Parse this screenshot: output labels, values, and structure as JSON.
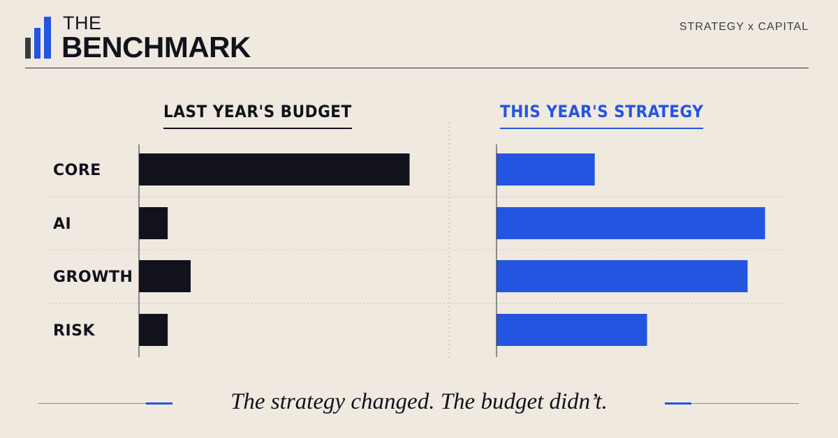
{
  "brand": {
    "line1": "THE",
    "line2": "BENCHMARK",
    "tagline": "STRATEGY x CAPITAL",
    "icon": "bar-chart-logo-icon"
  },
  "colors": {
    "background": "#efe9e0",
    "ink": "#11121c",
    "accent": "#2355e0",
    "logo_gray": "#3a3b40"
  },
  "chart_data": {
    "type": "bar",
    "orientation": "horizontal",
    "categories": [
      "CORE",
      "AI",
      "GROWTH",
      "RISK"
    ],
    "panels": [
      {
        "title": "LAST YEAR'S BUDGET",
        "color": "#11121c",
        "values": [
          100,
          10.5,
          19,
          10.5
        ]
      },
      {
        "title": "THIS YEAR'S STRATEGY",
        "color": "#2355e0",
        "values": [
          36.5,
          100,
          93.5,
          56
        ]
      }
    ],
    "xlim": [
      0,
      100
    ],
    "axis_labels_visible": false,
    "grid": "dotted horizontal separators"
  },
  "caption": "The strategy changed. The budget didn’t."
}
